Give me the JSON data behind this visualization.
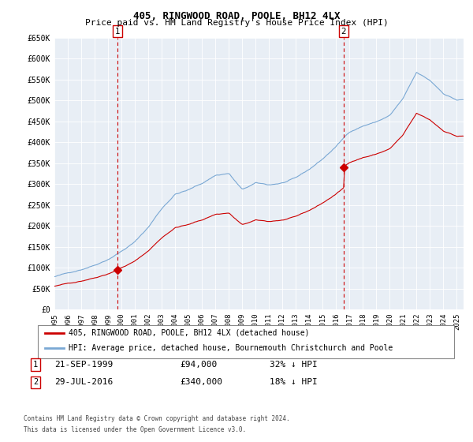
{
  "title": "405, RINGWOOD ROAD, POOLE, BH12 4LX",
  "subtitle": "Price paid vs. HM Land Registry's House Price Index (HPI)",
  "ylabel_ticks": [
    "£0",
    "£50K",
    "£100K",
    "£150K",
    "£200K",
    "£250K",
    "£300K",
    "£350K",
    "£400K",
    "£450K",
    "£500K",
    "£550K",
    "£600K",
    "£650K"
  ],
  "ylim": [
    0,
    650000
  ],
  "xlim_start": 1995.0,
  "xlim_end": 2025.5,
  "purchase1_year": 1999.72,
  "purchase1_price": 94000,
  "purchase1_label": "1",
  "purchase1_date": "21-SEP-1999",
  "purchase1_text": "£94,000",
  "purchase1_pct": "32% ↓ HPI",
  "purchase2_year": 2016.56,
  "purchase2_price": 340000,
  "purchase2_label": "2",
  "purchase2_date": "29-JUL-2016",
  "purchase2_text": "£340,000",
  "purchase2_pct": "18% ↓ HPI",
  "legend_line1": "405, RINGWOOD ROAD, POOLE, BH12 4LX (detached house)",
  "legend_line2": "HPI: Average price, detached house, Bournemouth Christchurch and Poole",
  "footer1": "Contains HM Land Registry data © Crown copyright and database right 2024.",
  "footer2": "This data is licensed under the Open Government Licence v3.0.",
  "line_color_price": "#cc0000",
  "line_color_hpi": "#7aa8d4",
  "bg_color": "#ffffff",
  "plot_bg_color": "#e8eef5",
  "grid_color": "#ffffff",
  "marker_box_color": "#cc0000",
  "title_fontsize": 9,
  "subtitle_fontsize": 8
}
